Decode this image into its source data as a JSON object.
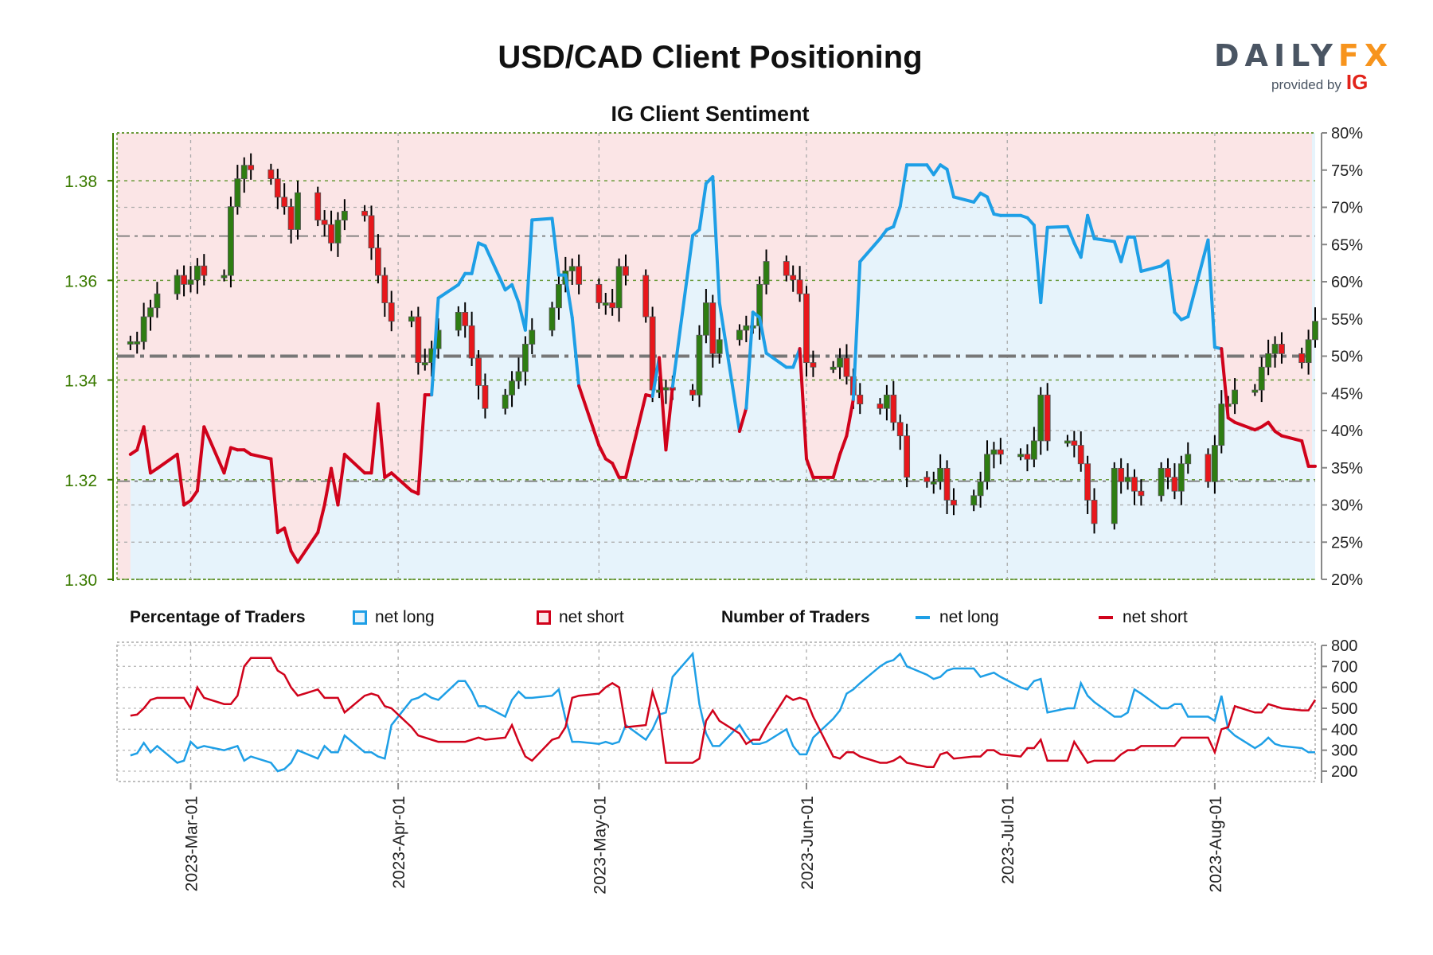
{
  "header": {
    "title": "USD/CAD Client Positioning",
    "subtitle": "IG Client Sentiment",
    "logo": {
      "brand": "DAILY",
      "brand_accent": "FX",
      "provided_by": "provided by",
      "partner": "IG"
    }
  },
  "legend": {
    "pct_heading": "Percentage of Traders",
    "pct_long": "net long",
    "pct_short": "net short",
    "num_heading": "Number of Traders",
    "num_long": "net long",
    "num_short": "net short"
  },
  "colors": {
    "net_long": "#1e9fe6",
    "net_short": "#d0021b",
    "long_fill": "#e6f3fb",
    "short_fill": "#fbe5e6",
    "candle_up": "#2e7d12",
    "candle_down": "#e8171b",
    "price_axis": "#3a7a00",
    "grid_green": "#6a9a3a"
  },
  "chart_data": [
    {
      "type": "candlestick+line",
      "title": "IG Client Sentiment",
      "left_axis": {
        "ylim": [
          1.3,
          1.3896
        ],
        "ticks": [
          "1.30",
          "1.32",
          "1.34",
          "1.36",
          "1.38"
        ]
      },
      "right_axis": {
        "ylim": [
          20,
          80
        ],
        "ticks": [
          "20%",
          "25%",
          "30%",
          "35%",
          "40%",
          "45%",
          "50%",
          "55%",
          "60%",
          "65%",
          "70%",
          "75%",
          "80%"
        ]
      },
      "x_ticks": [
        "2023-Mar-01",
        "2023-Apr-01",
        "2023-May-01",
        "2023-Jun-01",
        "2023-Jul-01",
        "2023-Aug-01"
      ],
      "xlim": [
        "2023-02-18",
        "2023-08-16"
      ],
      "reference_lines": {
        "sentiment_pct": 50,
        "price_upper": 1.3689,
        "price_lower": 1.3197
      },
      "grid": true,
      "weeks": [
        {
          "week_of": "2023-02-20",
          "close": [
            1.3477,
            1.3477,
            1.3527,
            1.3545,
            1.3573
          ],
          "net_long_pct": [
            36.8,
            37.4,
            40.5,
            34.3,
            34.9
          ]
        },
        {
          "week_of": "2023-02-27",
          "close": [
            1.361,
            1.3592,
            1.3601,
            1.3629,
            1.361
          ],
          "net_long_pct": [
            36.8,
            30.0,
            30.6,
            31.9,
            40.5
          ]
        },
        {
          "week_of": "2023-03-06",
          "close": [
            1.361,
            1.3748,
            1.3804,
            1.3831,
            1.3822
          ],
          "net_long_pct": [
            34.3,
            37.7,
            37.4,
            37.4,
            36.8
          ]
        },
        {
          "week_of": "2023-03-13",
          "close": [
            1.3804,
            1.3767,
            1.3748,
            1.3702,
            1.3776
          ],
          "net_long_pct": [
            36.2,
            26.3,
            26.9,
            23.8,
            22.3
          ]
        },
        {
          "week_of": "2023-03-20",
          "close": [
            1.3721,
            1.3712,
            1.3675,
            1.3721,
            1.3739
          ],
          "net_long_pct": [
            26.3,
            30.0,
            34.9,
            30.0,
            36.8
          ]
        },
        {
          "week_of": "2023-03-27",
          "close": [
            1.373,
            1.3665,
            1.361,
            1.3555,
            1.3518
          ],
          "net_long_pct": [
            34.3,
            34.3,
            43.6,
            33.7,
            34.3
          ]
        },
        {
          "week_of": "2023-04-03",
          "close": [
            1.3527,
            1.3435,
            1.3435,
            1.3463,
            1.35
          ],
          "net_long_pct": [
            31.9,
            31.5,
            44.8,
            44.8,
            57.8
          ]
        },
        {
          "week_of": "2023-04-10",
          "close": [
            1.3536,
            1.3509,
            1.3444,
            1.3389,
            1.3343
          ],
          "net_long_pct": [
            59.6,
            61.1,
            61.1,
            65.2,
            64.8
          ]
        },
        {
          "week_of": "2023-04-17",
          "close": [
            1.337,
            1.3398,
            1.3417,
            1.3472,
            1.35
          ],
          "net_long_pct": [
            58.9,
            59.6,
            57.2,
            53.5,
            68.3
          ]
        },
        {
          "week_of": "2023-04-24",
          "close": [
            1.3545,
            1.3592,
            1.3619,
            1.3628,
            1.3592
          ],
          "net_long_pct": [
            68.5,
            60.9,
            60.9,
            55.2,
            46.0
          ]
        },
        {
          "week_of": "2023-05-01",
          "close": [
            1.3555,
            1.3555,
            1.3545,
            1.3628,
            1.361
          ],
          "net_long_pct": [
            38.0,
            36.2,
            35.6,
            33.7,
            33.7
          ]
        },
        {
          "week_of": "2023-05-08",
          "close": [
            1.3527,
            1.338,
            1.338,
            1.3385,
            1.338
          ],
          "net_long_pct": [
            44.8,
            44.6,
            49.8,
            37.4,
            45.9
          ]
        },
        {
          "week_of": "2023-05-15",
          "close": [
            1.337,
            1.349,
            1.3555,
            1.3453,
            1.3481
          ],
          "net_long_pct": [
            66.2,
            67.0,
            73.2,
            74.1,
            57.2
          ]
        },
        {
          "week_of": "2023-05-22",
          "close": [
            1.35,
            1.3509,
            1.3509,
            1.3592,
            1.3638
          ],
          "net_long_pct": [
            39.9,
            43.0,
            55.9,
            55.2,
            50.4
          ]
        },
        {
          "week_of": "2023-05-29",
          "close": [
            1.361,
            1.3601,
            1.3573,
            1.3435,
            1.3426
          ],
          "net_long_pct": [
            48.5,
            48.5,
            51.0,
            36.2,
            33.7
          ]
        },
        {
          "week_of": "2023-06-05",
          "close": [
            1.3426,
            1.3444,
            1.3407,
            1.337,
            1.3352
          ],
          "net_long_pct": [
            33.7,
            36.8,
            39.3,
            44.2,
            62.7
          ]
        },
        {
          "week_of": "2023-06-12",
          "close": [
            1.3343,
            1.337,
            1.3315,
            1.3288,
            1.3205
          ],
          "net_long_pct": [
            65.8,
            67.0,
            67.4,
            70.1,
            75.7
          ]
        },
        {
          "week_of": "2023-06-19",
          "close": [
            1.3196,
            1.3196,
            1.3223,
            1.3159,
            1.3149
          ],
          "net_long_pct": [
            75.7,
            74.4,
            75.7,
            75.1,
            71.4
          ]
        },
        {
          "week_of": "2023-06-26",
          "close": [
            1.3168,
            1.3196,
            1.3251,
            1.326,
            1.3251
          ],
          "net_long_pct": [
            70.7,
            71.9,
            71.4,
            69.1,
            68.9
          ]
        },
        {
          "week_of": "2023-07-03",
          "close": [
            1.3251,
            1.3241,
            1.3278,
            1.337,
            1.3278
          ],
          "net_long_pct": [
            68.9,
            68.6,
            67.6,
            57.2,
            67.3
          ]
        },
        {
          "week_of": "2023-07-10",
          "close": [
            1.3278,
            1.3269,
            1.3232,
            1.3159,
            1.3112
          ],
          "net_long_pct": [
            67.4,
            65.2,
            63.3,
            68.9,
            65.8
          ]
        },
        {
          "week_of": "2023-07-17",
          "close": [
            1.3223,
            1.3196,
            1.3205,
            1.3177,
            1.3168
          ],
          "net_long_pct": [
            65.4,
            62.7,
            66.0,
            66.0,
            61.4
          ]
        },
        {
          "week_of": "2023-07-24",
          "close": [
            1.3223,
            1.3205,
            1.3177,
            1.3232,
            1.3251
          ],
          "net_long_pct": [
            62.1,
            62.8,
            55.9,
            54.9,
            55.3
          ]
        },
        {
          "week_of": "2023-07-31",
          "close": [
            1.3196,
            1.3269,
            1.3352,
            1.3352,
            1.338
          ],
          "net_long_pct": [
            65.6,
            51.2,
            51.0,
            41.7,
            41.1
          ]
        },
        {
          "week_of": "2023-08-07",
          "close": [
            1.338,
            1.3426,
            1.3453,
            1.3472,
            1.3453
          ],
          "net_long_pct": [
            40.1,
            40.5,
            41.1,
            39.9,
            39.3
          ]
        },
        {
          "week_of": "2023-08-14",
          "close": [
            1.3435,
            1.3481,
            1.3518
          ],
          "net_long_pct": [
            38.6,
            35.2,
            35.2
          ]
        }
      ]
    },
    {
      "type": "line",
      "title": "Number of Traders",
      "right_axis": {
        "ylim": [
          200,
          800
        ],
        "ticks": [
          "200",
          "300",
          "400",
          "500",
          "600",
          "700",
          "800"
        ]
      },
      "grid": true,
      "series": [
        {
          "name": "net long",
          "values": [
            275,
            285,
            335,
            290,
            320,
            240,
            250,
            340,
            310,
            320,
            300,
            310,
            320,
            250,
            270,
            240,
            200,
            210,
            240,
            300,
            260,
            320,
            290,
            290,
            370,
            290,
            290,
            270,
            260,
            420,
            540,
            550,
            570,
            550,
            540,
            630,
            630,
            580,
            510,
            510,
            460,
            540,
            580,
            550,
            550,
            560,
            590,
            450,
            340,
            340,
            330,
            340,
            330,
            340,
            420,
            350,
            400,
            470,
            480,
            650,
            760,
            520,
            380,
            320,
            320,
            420,
            370,
            330,
            330,
            340,
            400,
            320,
            280,
            280,
            360,
            450,
            490,
            570,
            590,
            620,
            700,
            720,
            730,
            760,
            700,
            660,
            640,
            650,
            680,
            690,
            690,
            650,
            660,
            670,
            650,
            600,
            590,
            630,
            640,
            480,
            500,
            500,
            620,
            560,
            530,
            460,
            460,
            480,
            590,
            570,
            500,
            500,
            520,
            520,
            460,
            460,
            440,
            560,
            400,
            370,
            310,
            330,
            360,
            330,
            320,
            310,
            290,
            290
          ]
        },
        {
          "name": "net short",
          "values": [
            465,
            470,
            500,
            540,
            550,
            550,
            550,
            500,
            600,
            550,
            520,
            520,
            560,
            700,
            740,
            740,
            680,
            660,
            600,
            560,
            590,
            550,
            550,
            550,
            480,
            560,
            570,
            560,
            510,
            500,
            410,
            370,
            360,
            350,
            340,
            340,
            340,
            350,
            360,
            350,
            360,
            420,
            340,
            270,
            250,
            350,
            360,
            410,
            550,
            560,
            570,
            600,
            620,
            600,
            410,
            420,
            580,
            480,
            240,
            240,
            240,
            260,
            440,
            490,
            440,
            380,
            330,
            350,
            350,
            410,
            560,
            540,
            550,
            540,
            460,
            270,
            260,
            290,
            290,
            270,
            240,
            240,
            250,
            270,
            240,
            220,
            220,
            280,
            290,
            260,
            270,
            270,
            300,
            300,
            280,
            270,
            310,
            310,
            350,
            250,
            250,
            340,
            290,
            240,
            250,
            250,
            280,
            300,
            300,
            320,
            320,
            320,
            320,
            360,
            360,
            360,
            290,
            400,
            410,
            510,
            480,
            480,
            520,
            510,
            500,
            490,
            490,
            540
          ]
        }
      ]
    }
  ]
}
